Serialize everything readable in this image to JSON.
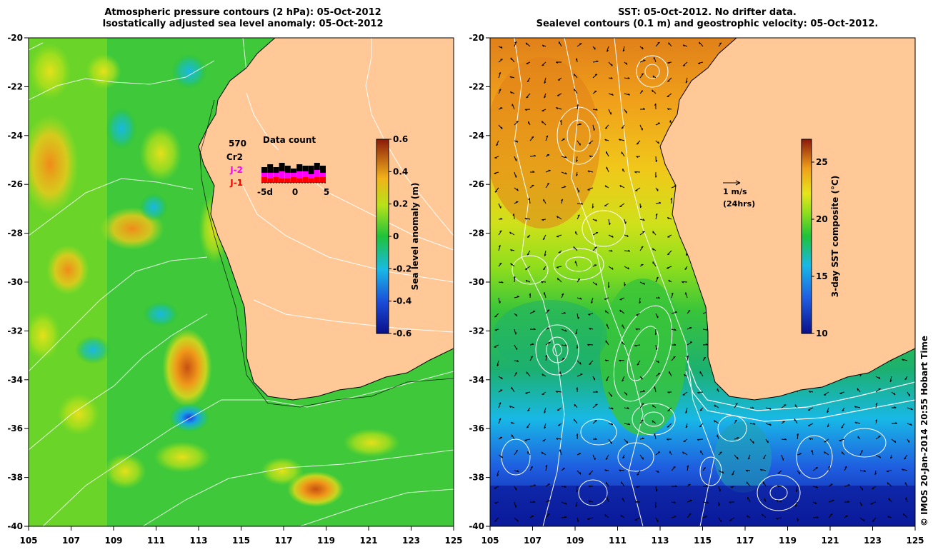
{
  "left_map": {
    "title_line1": "Atmospheric pressure contours (2 hPa): 05-Oct-2012",
    "title_line2": "Isostatically adjusted sea level anomaly: 05-Oct-2012",
    "colorbar": {
      "label": "Sea level anomaly (m)",
      "ticks": [
        "0.6",
        "0.4",
        "0.2",
        "0",
        "-0.2",
        "-0.4",
        "-0.6"
      ]
    },
    "data_count": {
      "title": "Data count",
      "total": "570",
      "rows": [
        "Cr2",
        "J-2",
        "J-1"
      ],
      "row_colors": [
        "#000000",
        "#ff00ff",
        "#ff0000"
      ],
      "axis_ticks": [
        "-5d",
        "0",
        "5"
      ]
    }
  },
  "right_map": {
    "title_line1": "SST: 05-Oct-2012. No drifter data.",
    "title_line2": "Sealevel contours (0.1 m) and geostrophic velocity: 05-Oct-2012.",
    "colorbar": {
      "label": "3-day SST composite (°C)",
      "ticks": [
        "25",
        "20",
        "15",
        "10"
      ]
    },
    "velocity_scale": {
      "label": "1 m/s",
      "sublabel": "(24hrs)"
    }
  },
  "axes": {
    "lat_ticks": [
      "-20",
      "-22",
      "-24",
      "-26",
      "-28",
      "-30",
      "-32",
      "-34",
      "-36",
      "-38",
      "-40"
    ],
    "lon_ticks": [
      "105",
      "107",
      "109",
      "111",
      "113",
      "115",
      "117",
      "119",
      "121",
      "123",
      "125"
    ]
  },
  "credit": "© IMOS 20-Jan-2014 20:55 Hobart Time"
}
